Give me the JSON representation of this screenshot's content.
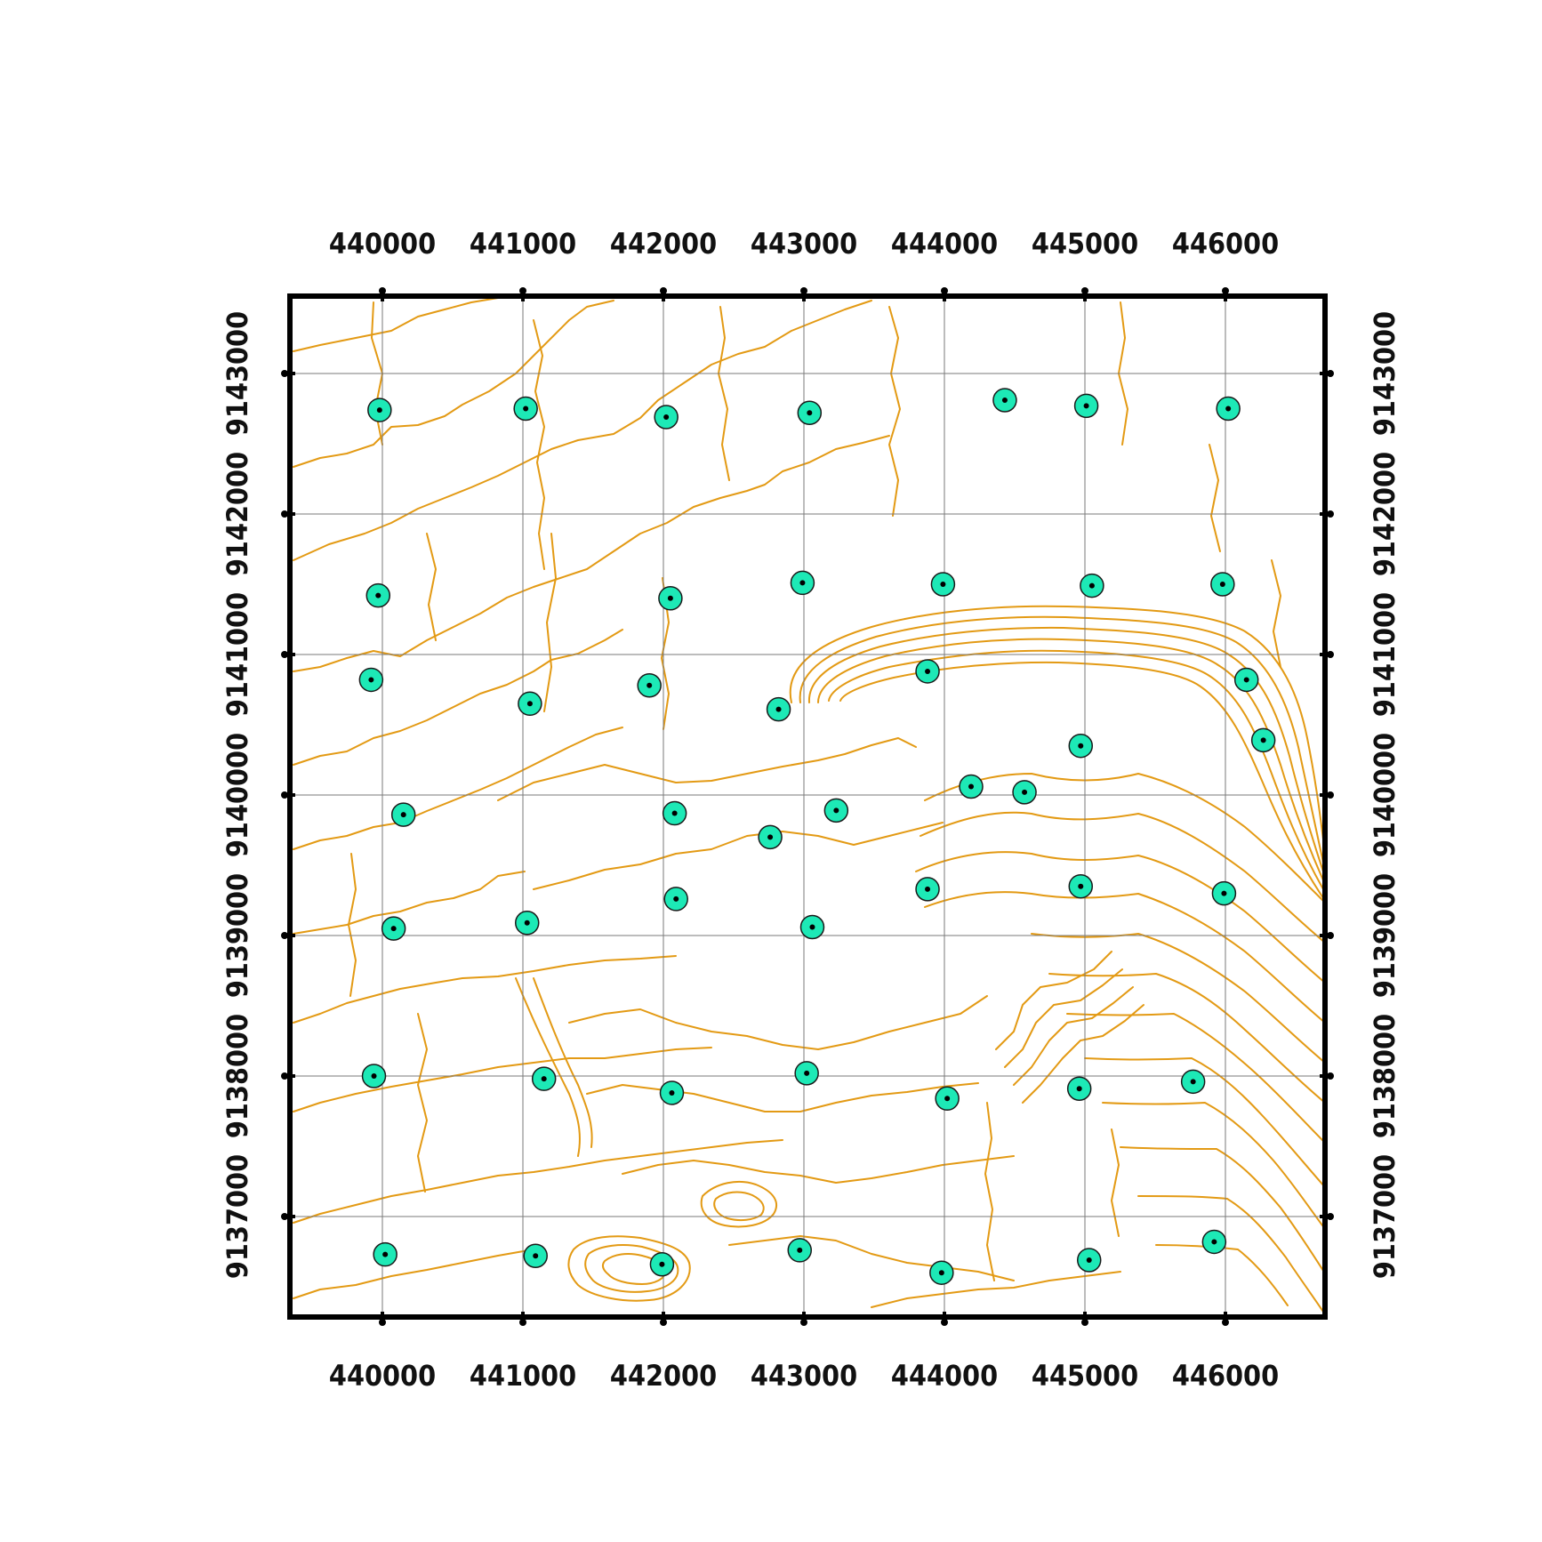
{
  "map": {
    "x_labels": [
      "440000",
      "441000",
      "442000",
      "443000",
      "444000",
      "445000",
      "446000"
    ],
    "y_labels": [
      "9143000",
      "9142000",
      "9141000",
      "9140000",
      "9139000",
      "9138000",
      "9137000"
    ],
    "colors": {
      "contour": "#e39a14",
      "point_fill": "#1de9b6",
      "grid": "#7a7a7a",
      "frame": "#000000"
    },
    "sample_points": [
      {
        "e": 439980,
        "n": 9142740
      },
      {
        "e": 441020,
        "n": 9142750
      },
      {
        "e": 442020,
        "n": 9142690
      },
      {
        "e": 443040,
        "n": 9142720
      },
      {
        "e": 444430,
        "n": 9142810
      },
      {
        "e": 445010,
        "n": 9142770
      },
      {
        "e": 446020,
        "n": 9142750
      },
      {
        "e": 439970,
        "n": 9141420
      },
      {
        "e": 442050,
        "n": 9141400
      },
      {
        "e": 442990,
        "n": 9141510
      },
      {
        "e": 443990,
        "n": 9141500
      },
      {
        "e": 445050,
        "n": 9141490
      },
      {
        "e": 445980,
        "n": 9141500
      },
      {
        "e": 439920,
        "n": 9140820
      },
      {
        "e": 441050,
        "n": 9140650
      },
      {
        "e": 441900,
        "n": 9140780
      },
      {
        "e": 442820,
        "n": 9140610
      },
      {
        "e": 443880,
        "n": 9140880
      },
      {
        "e": 446150,
        "n": 9140820
      },
      {
        "e": 446270,
        "n": 9140390
      },
      {
        "e": 444970,
        "n": 9140350
      },
      {
        "e": 444190,
        "n": 9140060
      },
      {
        "e": 444570,
        "n": 9140020
      },
      {
        "e": 440150,
        "n": 9139860
      },
      {
        "e": 442080,
        "n": 9139870
      },
      {
        "e": 443230,
        "n": 9139890
      },
      {
        "e": 442760,
        "n": 9139700
      },
      {
        "e": 444970,
        "n": 9139350
      },
      {
        "e": 443880,
        "n": 9139330
      },
      {
        "e": 445990,
        "n": 9139300
      },
      {
        "e": 442090,
        "n": 9139260
      },
      {
        "e": 440080,
        "n": 9139050
      },
      {
        "e": 441030,
        "n": 9139090
      },
      {
        "e": 443060,
        "n": 9139060
      },
      {
        "e": 439940,
        "n": 9138000
      },
      {
        "e": 441150,
        "n": 9137980
      },
      {
        "e": 442060,
        "n": 9137880
      },
      {
        "e": 443020,
        "n": 9138020
      },
      {
        "e": 444020,
        "n": 9137840
      },
      {
        "e": 444960,
        "n": 9137910
      },
      {
        "e": 445770,
        "n": 9137960
      },
      {
        "e": 440020,
        "n": 9136730
      },
      {
        "e": 441090,
        "n": 9136720
      },
      {
        "e": 441990,
        "n": 9136660
      },
      {
        "e": 442970,
        "n": 9136760
      },
      {
        "e": 443980,
        "n": 9136600
      },
      {
        "e": 445030,
        "n": 9136690
      },
      {
        "e": 445920,
        "n": 9136820
      }
    ]
  }
}
